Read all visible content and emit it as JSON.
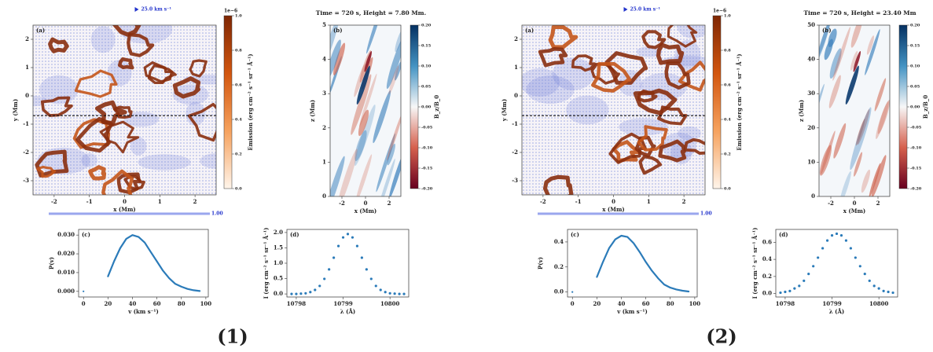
{
  "chart_data": [
    {
      "type": "map",
      "panel": "(a)",
      "xlabel": "x (Mm)",
      "ylabel": "y (Mm)",
      "xlim": [
        -2.6,
        2.6
      ],
      "ylim": [
        -3.5,
        2.5
      ],
      "xticks": [
        -2,
        -1,
        0,
        1,
        2
      ],
      "yticks": [
        -3,
        -2,
        -1,
        0,
        1,
        2
      ],
      "cut_y": -0.7,
      "arrow_label": "25.0 km s⁻¹",
      "scale_label": "1.00",
      "colorbar": {
        "label": "Emission (erg cm⁻² s⁻¹ sr⁻¹ Å⁻¹)",
        "multiplier": "1e−6",
        "lim": [
          0,
          1
        ],
        "ticks": [
          {
            "value": 0,
            "label": "0.0"
          },
          {
            "value": 0.2,
            "label": "0.2"
          },
          {
            "value": 0.4,
            "label": "0.4"
          },
          {
            "value": 0.6,
            "label": "0.6"
          },
          {
            "value": 0.8,
            "label": "0.8"
          },
          {
            "value": 1,
            "label": "1.0"
          }
        ],
        "colors": [
          "#fff5eb",
          "#f6a25e",
          "#d2560f",
          "#7f2704"
        ]
      }
    },
    {
      "type": "map",
      "panel": "(b)",
      "title": "Time = 720 s, Height = 7.80 Mm.",
      "xlabel": "x (Mm)",
      "ylabel": "z (Mm)",
      "xlim": [
        -3,
        3
      ],
      "ylim": [
        0,
        5
      ],
      "xticks": [
        -2,
        0,
        2
      ],
      "yticks": [
        0,
        1,
        2,
        3,
        4,
        5
      ],
      "colorbar": {
        "label": "B_z/B_0",
        "lim": [
          -0.2,
          0.2
        ],
        "ticks": [
          {
            "value": -0.2,
            "label": "-0.20"
          },
          {
            "value": -0.15,
            "label": "-0.15"
          },
          {
            "value": -0.1,
            "label": "-0.10"
          },
          {
            "value": -0.05,
            "label": "-0.05"
          },
          {
            "value": 0,
            "label": "0.00"
          },
          {
            "value": 0.05,
            "label": "0.05"
          },
          {
            "value": 0.1,
            "label": "0.10"
          },
          {
            "value": 0.15,
            "label": "0.15"
          },
          {
            "value": 0.2,
            "label": "0.20"
          }
        ],
        "colors": [
          "#67001f",
          "#d6604d",
          "#f7f7f7",
          "#4393c3",
          "#053061"
        ]
      }
    },
    {
      "type": "line",
      "panel": "(c)",
      "xlabel": "v (km s⁻¹)",
      "ylabel": "P(v)",
      "color": "#2b7bb9",
      "xlim": [
        -4,
        102
      ],
      "ylim": [
        -0.003,
        0.033
      ],
      "xticks": [
        0,
        20,
        40,
        60,
        80,
        100
      ],
      "yticks": [
        {
          "value": 0,
          "label": "0.000"
        },
        {
          "value": 0.01,
          "label": "0.010"
        },
        {
          "value": 0.02,
          "label": "0.020"
        },
        {
          "value": 0.03,
          "label": "0.030"
        }
      ],
      "x": [
        0,
        10,
        20,
        25,
        30,
        35,
        40,
        45,
        50,
        55,
        60,
        65,
        70,
        75,
        80,
        85,
        90,
        95
      ],
      "values": [
        0.0,
        null,
        0.008,
        0.016,
        0.023,
        0.028,
        0.03,
        0.029,
        0.026,
        0.021,
        0.016,
        0.011,
        0.007,
        0.004,
        0.0025,
        0.0013,
        0.0006,
        0.0002
      ]
    },
    {
      "type": "scatter",
      "panel": "(d)",
      "xlabel": "λ (Å)",
      "ylabel": "I (erg cm⁻² s⁻¹ sr⁻¹ Å⁻¹)",
      "color": "#2b7bb9",
      "xlim": [
        10797.8,
        10800.4
      ],
      "ylim": [
        -0.1,
        2.1
      ],
      "xticks": [
        10798,
        10799,
        10800
      ],
      "yticks": [
        {
          "value": 0,
          "label": "0.0"
        },
        {
          "value": 0.5,
          "label": "0.5"
        },
        {
          "value": 1,
          "label": "1.0"
        },
        {
          "value": 1.5,
          "label": "1.5"
        },
        {
          "value": 2,
          "label": "2.0"
        }
      ],
      "x": [
        10797.9,
        10798.0,
        10798.1,
        10798.2,
        10798.3,
        10798.4,
        10798.5,
        10798.6,
        10798.7,
        10798.8,
        10798.9,
        10799.0,
        10799.1,
        10799.2,
        10799.3,
        10799.4,
        10799.5,
        10799.6,
        10799.7,
        10799.8,
        10799.9,
        10800.0,
        10800.1,
        10800.2,
        10800.3
      ],
      "values": [
        0.0,
        0.0,
        0.01,
        0.02,
        0.06,
        0.13,
        0.26,
        0.49,
        0.8,
        1.18,
        1.56,
        1.84,
        1.95,
        1.84,
        1.56,
        1.18,
        0.8,
        0.49,
        0.26,
        0.13,
        0.06,
        0.02,
        0.01,
        0.0,
        0.0
      ]
    },
    {
      "type": "map",
      "panel": "(a)",
      "xlabel": "x (Mm)",
      "ylabel": "y (Mm)",
      "xlim": [
        -2.6,
        2.6
      ],
      "ylim": [
        -3.5,
        2.5
      ],
      "xticks": [
        -2,
        -1,
        0,
        1,
        2
      ],
      "yticks": [
        -3,
        -2,
        -1,
        0,
        1,
        2
      ],
      "cut_y": -0.7,
      "arrow_label": "25.0 km s⁻¹",
      "scale_label": "1.00",
      "colorbar": {
        "label": "Emission (erg cm⁻² s⁻¹ sr⁻¹ Å⁻¹)",
        "multiplier": "1e−6",
        "lim": [
          0,
          1
        ],
        "ticks": [
          {
            "value": 0,
            "label": "0.0"
          },
          {
            "value": 0.2,
            "label": "0.2"
          },
          {
            "value": 0.4,
            "label": "0.4"
          },
          {
            "value": 0.6,
            "label": "0.6"
          },
          {
            "value": 0.8,
            "label": "0.8"
          },
          {
            "value": 1,
            "label": "1.0"
          }
        ],
        "colors": [
          "#fff5eb",
          "#f6a25e",
          "#d2560f",
          "#7f2704"
        ]
      }
    },
    {
      "type": "map",
      "panel": "(b)",
      "title": "Time = 720 s, Height = 23.40 Mm",
      "xlabel": "x (Mm)",
      "ylabel": "z (Mm)",
      "xlim": [
        -3,
        3
      ],
      "ylim": [
        0,
        50
      ],
      "xticks": [
        -2,
        0,
        2
      ],
      "yticks": [
        0,
        10,
        20,
        30,
        40,
        50
      ],
      "colorbar": {
        "label": "B_z/B_0",
        "lim": [
          -0.2,
          0.2
        ],
        "ticks": [
          {
            "value": -0.2,
            "label": "-0.20"
          },
          {
            "value": -0.15,
            "label": "-0.15"
          },
          {
            "value": -0.1,
            "label": "-0.10"
          },
          {
            "value": -0.05,
            "label": "-0.05"
          },
          {
            "value": 0,
            "label": "0.00"
          },
          {
            "value": 0.05,
            "label": "0.05"
          },
          {
            "value": 0.1,
            "label": "0.10"
          },
          {
            "value": 0.15,
            "label": "0.15"
          },
          {
            "value": 0.2,
            "label": "0.20"
          }
        ],
        "colors": [
          "#67001f",
          "#d6604d",
          "#f7f7f7",
          "#4393c3",
          "#053061"
        ]
      }
    },
    {
      "type": "line",
      "panel": "(c)",
      "xlabel": "v (km s⁻¹)",
      "ylabel": "P(v)",
      "color": "#2b7bb9",
      "xlim": [
        -4,
        102
      ],
      "ylim": [
        -0.04,
        0.5
      ],
      "xticks": [
        0,
        20,
        40,
        60,
        80,
        100
      ],
      "yticks": [
        {
          "value": 0,
          "label": "0.0"
        },
        {
          "value": 0.2,
          "label": "0.2"
        },
        {
          "value": 0.4,
          "label": "0.4"
        }
      ],
      "x": [
        0,
        10,
        20,
        25,
        30,
        35,
        40,
        45,
        50,
        55,
        60,
        65,
        70,
        75,
        80,
        85,
        90,
        95
      ],
      "values": [
        0.0,
        null,
        0.12,
        0.24,
        0.35,
        0.42,
        0.45,
        0.44,
        0.39,
        0.32,
        0.24,
        0.17,
        0.11,
        0.06,
        0.035,
        0.02,
        0.01,
        0.004
      ]
    },
    {
      "type": "scatter",
      "panel": "(d)",
      "xlabel": "λ (Å)",
      "ylabel": "I (erg cm⁻² s⁻¹ sr⁻¹ Å⁻¹)",
      "color": "#2b7bb9",
      "xlim": [
        10797.8,
        10800.4
      ],
      "ylim": [
        -0.04,
        0.75
      ],
      "xticks": [
        10798,
        10799,
        10800
      ],
      "yticks": [
        {
          "value": 0,
          "label": "0.0"
        },
        {
          "value": 0.2,
          "label": "0.2"
        },
        {
          "value": 0.4,
          "label": "0.4"
        },
        {
          "value": 0.6,
          "label": "0.6"
        }
      ],
      "x": [
        10797.9,
        10798.0,
        10798.1,
        10798.2,
        10798.3,
        10798.4,
        10798.5,
        10798.6,
        10798.7,
        10798.8,
        10798.9,
        10799.0,
        10799.1,
        10799.2,
        10799.3,
        10799.4,
        10799.5,
        10799.6,
        10799.7,
        10799.8,
        10799.9,
        10800.0,
        10800.1,
        10800.2,
        10800.3
      ],
      "values": [
        0.01,
        0.02,
        0.03,
        0.06,
        0.09,
        0.15,
        0.23,
        0.32,
        0.42,
        0.53,
        0.62,
        0.68,
        0.7,
        0.68,
        0.62,
        0.53,
        0.42,
        0.32,
        0.23,
        0.15,
        0.09,
        0.06,
        0.03,
        0.02,
        0.01
      ]
    }
  ],
  "captions": [
    "(1)",
    "(2)"
  ]
}
